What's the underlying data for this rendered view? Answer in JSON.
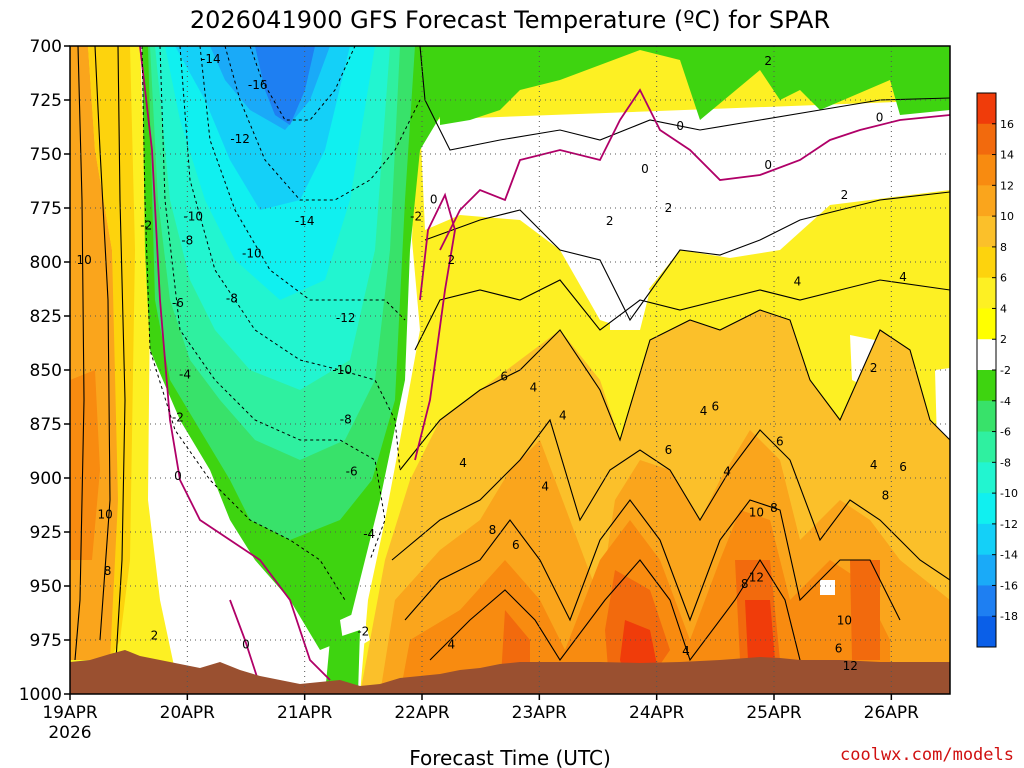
{
  "chart_data": {
    "type": "heatmap",
    "title": "2026041900 GFS Forecast Temperature (ºC) for SPAR",
    "xlabel": "Forecast Time (UTC)",
    "ylabel": "",
    "credit": "coolwx.com/models",
    "y_ticks": [
      "700",
      "725",
      "750",
      "775",
      "800",
      "825",
      "850",
      "875",
      "900",
      "925",
      "950",
      "975",
      "1000"
    ],
    "ylim": [
      1000,
      700
    ],
    "x_ticks": [
      "19APR",
      "20APR",
      "21APR",
      "22APR",
      "23APR",
      "24APR",
      "25APR",
      "26APR"
    ],
    "x_year": "2026",
    "xlim_days": [
      0,
      7.5
    ],
    "colorbar": {
      "levels": [
        "16",
        "14",
        "12",
        "10",
        "8",
        "6",
        "4",
        "2",
        "-2",
        "-4",
        "-6",
        "-8",
        "-10",
        "-12",
        "-14",
        "-16",
        "-18"
      ],
      "colors": [
        "#f03c0a",
        "#f26a0d",
        "#f88b10",
        "#faa51c",
        "#fbc02a",
        "#fdd30d",
        "#fdf023",
        "#ffff00",
        "#ffffff",
        "#3ed410",
        "#38e26a",
        "#2ff0a0",
        "#22f5d0",
        "#10f0f0",
        "#14d0f8",
        "#1aaaf8",
        "#1e7ff2",
        "#0a5fe8"
      ]
    },
    "grid": true,
    "contour_labels": [
      {
        "day": 1.2,
        "p": 706,
        "v": "-14"
      },
      {
        "day": 1.6,
        "p": 718,
        "v": "-16"
      },
      {
        "day": 1.45,
        "p": 743,
        "v": "-12"
      },
      {
        "day": 1.05,
        "p": 779,
        "v": "-10"
      },
      {
        "day": 0.65,
        "p": 783,
        "v": "-2"
      },
      {
        "day": 1.0,
        "p": 790,
        "v": "-8"
      },
      {
        "day": 1.55,
        "p": 796,
        "v": "-10"
      },
      {
        "day": 2.0,
        "p": 781,
        "v": "-14"
      },
      {
        "day": 0.12,
        "p": 799,
        "v": "10"
      },
      {
        "day": 0.92,
        "p": 819,
        "v": "-6"
      },
      {
        "day": 1.38,
        "p": 817,
        "v": "-8"
      },
      {
        "day": 2.35,
        "p": 826,
        "v": "-12"
      },
      {
        "day": 0.98,
        "p": 852,
        "v": "-4"
      },
      {
        "day": 2.32,
        "p": 850,
        "v": "-10"
      },
      {
        "day": 0.92,
        "p": 872,
        "v": "-2"
      },
      {
        "day": 2.35,
        "p": 873,
        "v": "-8"
      },
      {
        "day": 0.92,
        "p": 899,
        "v": "0"
      },
      {
        "day": 2.4,
        "p": 897,
        "v": "-6"
      },
      {
        "day": 0.3,
        "p": 917,
        "v": "10"
      },
      {
        "day": 2.55,
        "p": 926,
        "v": "-4"
      },
      {
        "day": 0.32,
        "p": 943,
        "v": "8"
      },
      {
        "day": 0.72,
        "p": 973,
        "v": "2"
      },
      {
        "day": 1.5,
        "p": 977,
        "v": "0"
      },
      {
        "day": 2.5,
        "p": 971,
        "v": "-2"
      },
      {
        "day": 2.95,
        "p": 779,
        "v": "-2"
      },
      {
        "day": 3.1,
        "p": 771,
        "v": "0"
      },
      {
        "day": 3.25,
        "p": 799,
        "v": "2"
      },
      {
        "day": 3.35,
        "p": 893,
        "v": "4"
      },
      {
        "day": 3.25,
        "p": 977,
        "v": "4"
      },
      {
        "day": 3.6,
        "p": 924,
        "v": "8"
      },
      {
        "day": 3.8,
        "p": 931,
        "v": "6"
      },
      {
        "day": 3.7,
        "p": 853,
        "v": "6"
      },
      {
        "day": 3.95,
        "p": 858,
        "v": "4"
      },
      {
        "day": 4.05,
        "p": 904,
        "v": "4"
      },
      {
        "day": 4.2,
        "p": 871,
        "v": "4"
      },
      {
        "day": 4.6,
        "p": 781,
        "v": "2"
      },
      {
        "day": 4.9,
        "p": 757,
        "v": "0"
      },
      {
        "day": 5.1,
        "p": 775,
        "v": "2"
      },
      {
        "day": 5.2,
        "p": 737,
        "v": "0"
      },
      {
        "day": 5.1,
        "p": 887,
        "v": "6"
      },
      {
        "day": 5.25,
        "p": 980,
        "v": "4"
      },
      {
        "day": 5.4,
        "p": 869,
        "v": "4"
      },
      {
        "day": 5.5,
        "p": 867,
        "v": "6"
      },
      {
        "day": 5.6,
        "p": 897,
        "v": "4"
      },
      {
        "day": 5.95,
        "p": 707,
        "v": "2"
      },
      {
        "day": 5.95,
        "p": 755,
        "v": "0"
      },
      {
        "day": 6.2,
        "p": 809,
        "v": "4"
      },
      {
        "day": 6.05,
        "p": 883,
        "v": "6"
      },
      {
        "day": 5.85,
        "p": 916,
        "v": "10"
      },
      {
        "day": 6.0,
        "p": 914,
        "v": "8"
      },
      {
        "day": 5.75,
        "p": 949,
        "v": "8"
      },
      {
        "day": 5.85,
        "p": 946,
        "v": "12"
      },
      {
        "day": 6.6,
        "p": 769,
        "v": "2"
      },
      {
        "day": 6.9,
        "p": 733,
        "v": "0"
      },
      {
        "day": 6.85,
        "p": 849,
        "v": "2"
      },
      {
        "day": 7.1,
        "p": 807,
        "v": "4"
      },
      {
        "day": 6.85,
        "p": 894,
        "v": "4"
      },
      {
        "day": 6.95,
        "p": 908,
        "v": "8"
      },
      {
        "day": 7.1,
        "p": 895,
        "v": "6"
      },
      {
        "day": 6.6,
        "p": 966,
        "v": "10"
      },
      {
        "day": 6.55,
        "p": 979,
        "v": "6"
      },
      {
        "day": 6.65,
        "p": 987,
        "v": "12"
      }
    ]
  }
}
